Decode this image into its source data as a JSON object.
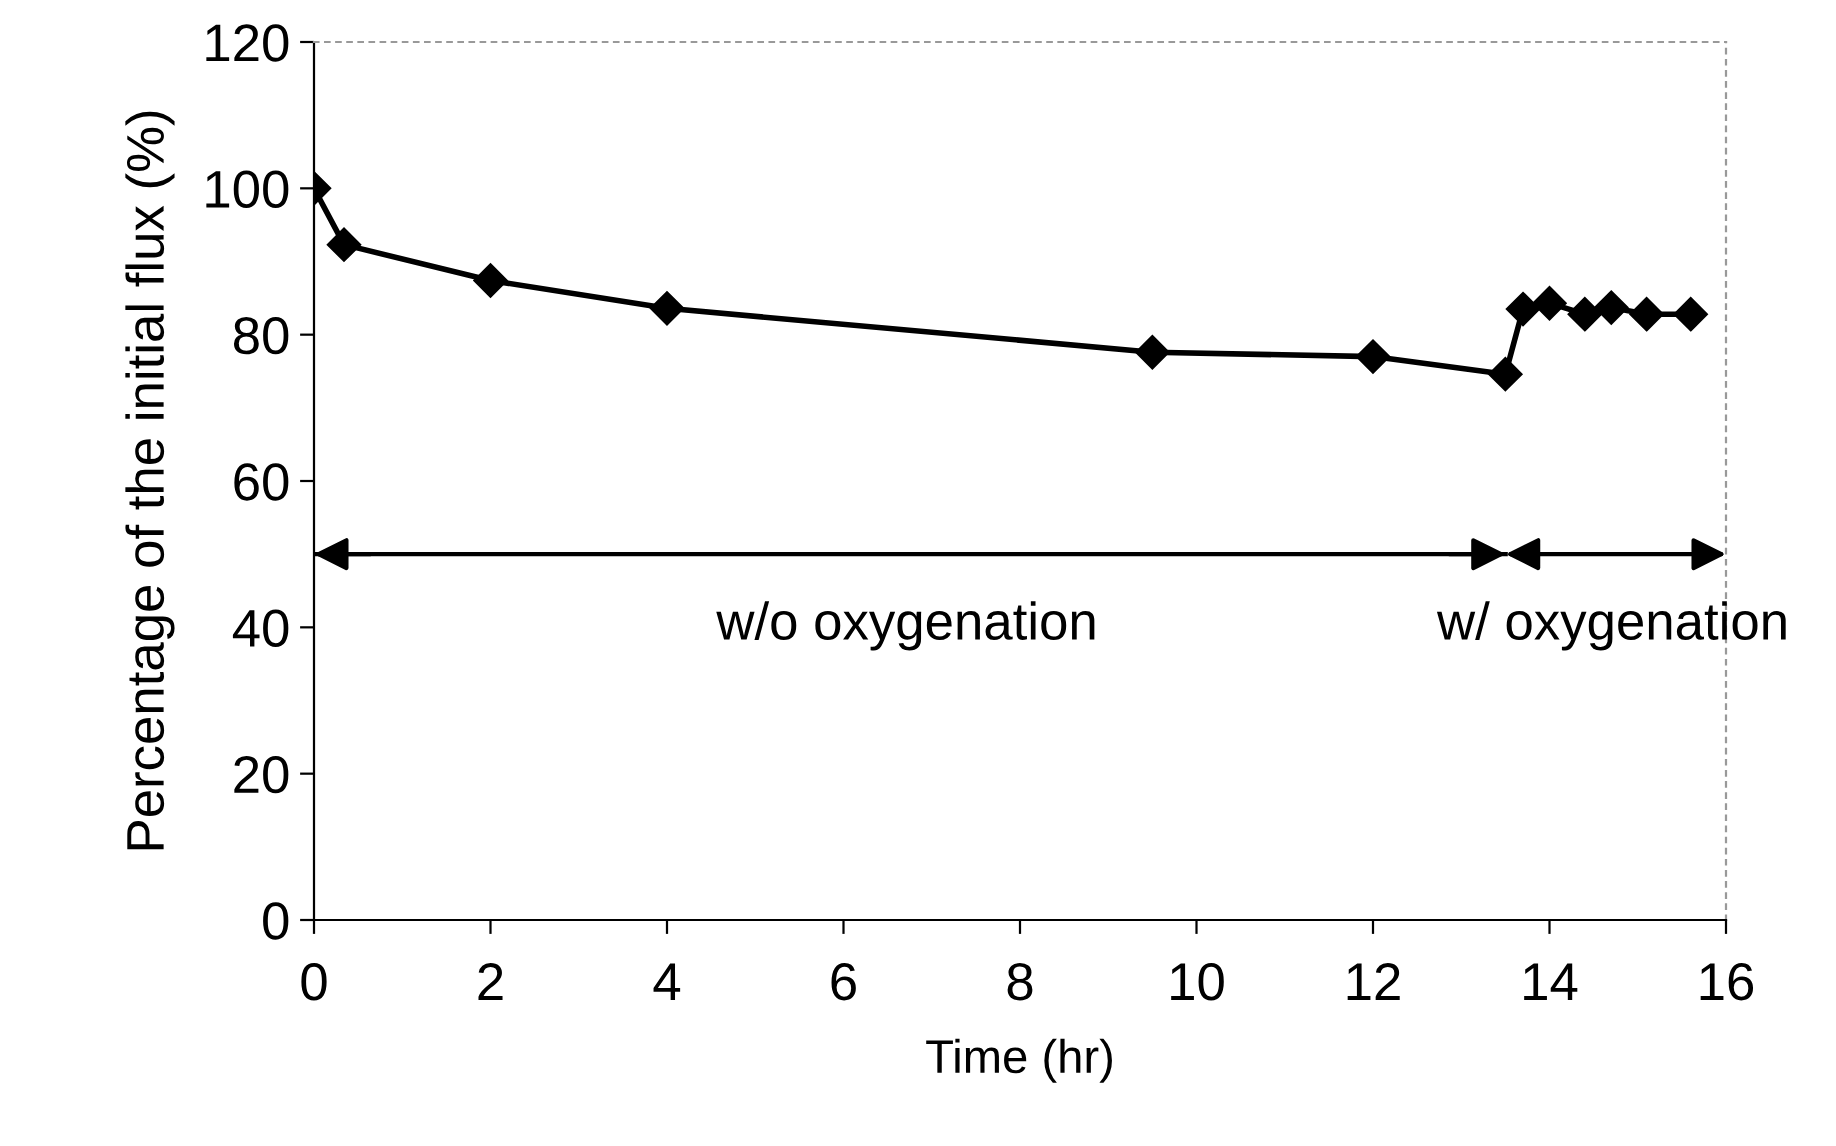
{
  "chart_data": {
    "type": "line",
    "xlabel": "Time (hr)",
    "ylabel": "Percentage of the initial flux (%)",
    "x": [
      0,
      0.34,
      2,
      4,
      9.5,
      12,
      13.5,
      13.7,
      14.0,
      14.4,
      14.7,
      15.1,
      15.6
    ],
    "series": [
      {
        "color": "#000000",
        "values": [
          100,
          92.3,
          87.4,
          83.6,
          77.6,
          77,
          74.6,
          83.5,
          84.3,
          82.8,
          83.7,
          82.8,
          82.8
        ]
      }
    ],
    "xlim": [
      0,
      16
    ],
    "xticks": [
      0,
      2,
      4,
      6,
      8,
      10,
      12,
      14,
      16
    ],
    "ylim": [
      0,
      120
    ],
    "yticks": [
      0,
      20,
      40,
      60,
      80,
      100,
      120
    ],
    "marker": "diamond",
    "line_style": "solid",
    "grid": false,
    "legend": false,
    "ref_lines": [
      {
        "axis": "y",
        "value": 50,
        "color": "#000000",
        "line_style": "solid"
      }
    ],
    "annotations": [
      "w/o oxygenation",
      "w/ oxygenation"
    ]
  }
}
